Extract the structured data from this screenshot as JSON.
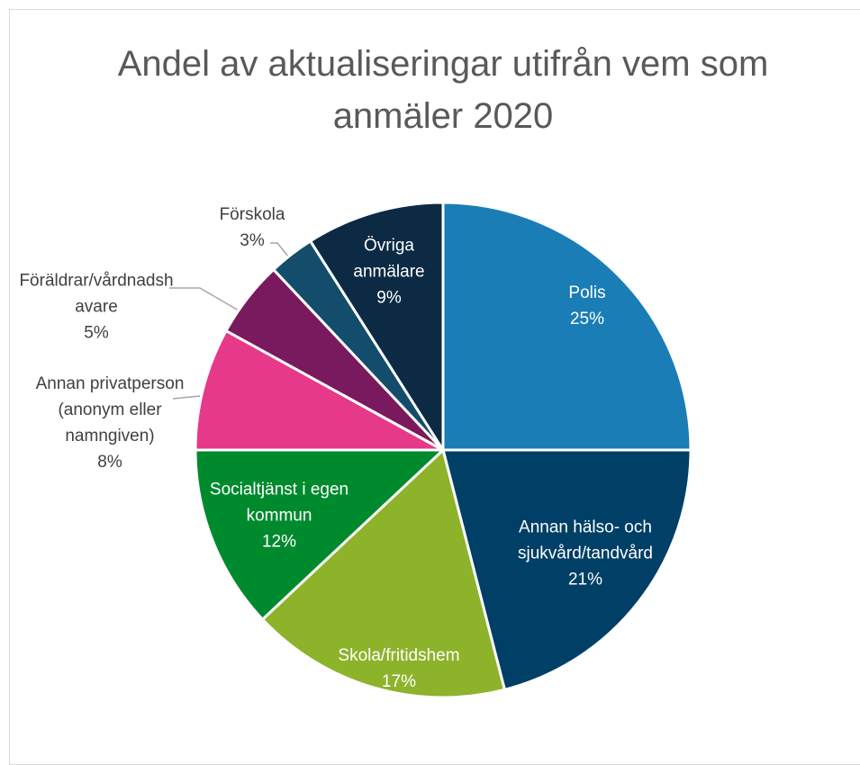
{
  "chart_data": {
    "type": "pie",
    "title": "Andel av aktualiseringar utifrån vem som anmäler 2020",
    "categories": [
      "Polis",
      "Annan hälso- och sjukvård/tandvård",
      "Skola/fritidshem",
      "Socialtjänst i egen kommun",
      "Annan privatperson (anonym eller namngiven)",
      "Föräldrar/vårdnadshavare",
      "Förskola",
      "Övriga anmälare"
    ],
    "values": [
      25,
      21,
      17,
      12,
      8,
      5,
      3,
      9
    ],
    "value_labels": [
      "25%",
      "21%",
      "17%",
      "12%",
      "8%",
      "5%",
      "3%",
      "9%"
    ],
    "colors": [
      "#1a7db5",
      "#003f66",
      "#8db32a",
      "#008a2e",
      "#e6398a",
      "#7a1a5e",
      "#134d6b",
      "#0c2a44"
    ]
  }
}
